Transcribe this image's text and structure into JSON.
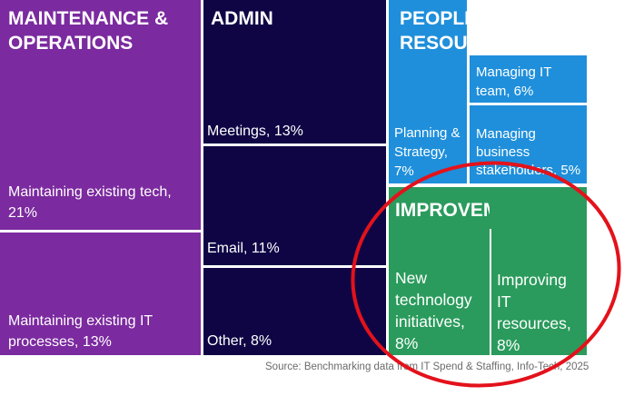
{
  "chart_data": {
    "type": "treemap",
    "groups": [
      {
        "name": "MAINTENANCE & OPERATIONS",
        "color": "#7b2a9f",
        "items": [
          {
            "label": "Maintaining existing tech, 21%",
            "value": 21
          },
          {
            "label": "Maintaining existing IT processes, 13%",
            "value": 13
          }
        ]
      },
      {
        "name": "ADMIN",
        "color": "#0f0545",
        "items": [
          {
            "label": "Meetings, 13%",
            "value": 13
          },
          {
            "label": "Email, 11%",
            "value": 11
          },
          {
            "label": "Other, 8%",
            "value": 8
          }
        ]
      },
      {
        "name": "PEOPLE & RESOURCES",
        "color": "#1f8fdb",
        "items": [
          {
            "label": "Planning & Strategy, 7%",
            "value": 7
          },
          {
            "label": "Managing IT team, 6%",
            "value": 6
          },
          {
            "label": "Managing business stakeholders, 5%",
            "value": 5
          }
        ]
      },
      {
        "name": "IMPROVEMENT",
        "color": "#2a9b5c",
        "items": [
          {
            "label": "New technology initiatives, 8%",
            "value": 8
          },
          {
            "label": "Improving IT resources, 8%",
            "value": 8
          }
        ]
      }
    ],
    "annotation": "red circle around IMPROVEMENT"
  },
  "source": "Source: Benchmarking data from IT Spend & Staffing, Info-Tech, 2025"
}
